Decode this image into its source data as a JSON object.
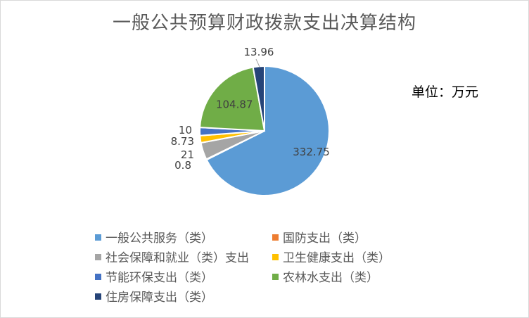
{
  "chart_data": {
    "type": "pie",
    "title": "一般公共预算财政拨款支出决算结构",
    "unit_note": "单位：万元",
    "slices": [
      {
        "name": "一般公共服务（类）",
        "value": 332.75,
        "label": "332.75",
        "color": "#5b9bd5"
      },
      {
        "name": "国防支出（类）",
        "value": 0.8,
        "label": "0.8",
        "color": "#ed7d31"
      },
      {
        "name": "社会保障和就业（类）支出",
        "value": 21,
        "label": "21",
        "color": "#a5a5a5"
      },
      {
        "name": "卫生健康支出（类）",
        "value": 8.73,
        "label": "8.73",
        "color": "#ffc000"
      },
      {
        "name": "节能环保支出（类）",
        "value": 10,
        "label": "10",
        "color": "#4472c4"
      },
      {
        "name": "农林水支出（类）",
        "value": 104.87,
        "label": "104.87",
        "color": "#70ad47"
      },
      {
        "name": "住房保障支出（类）",
        "value": 13.96,
        "label": "13.96",
        "color": "#264478"
      }
    ],
    "legend_position": "bottom"
  }
}
